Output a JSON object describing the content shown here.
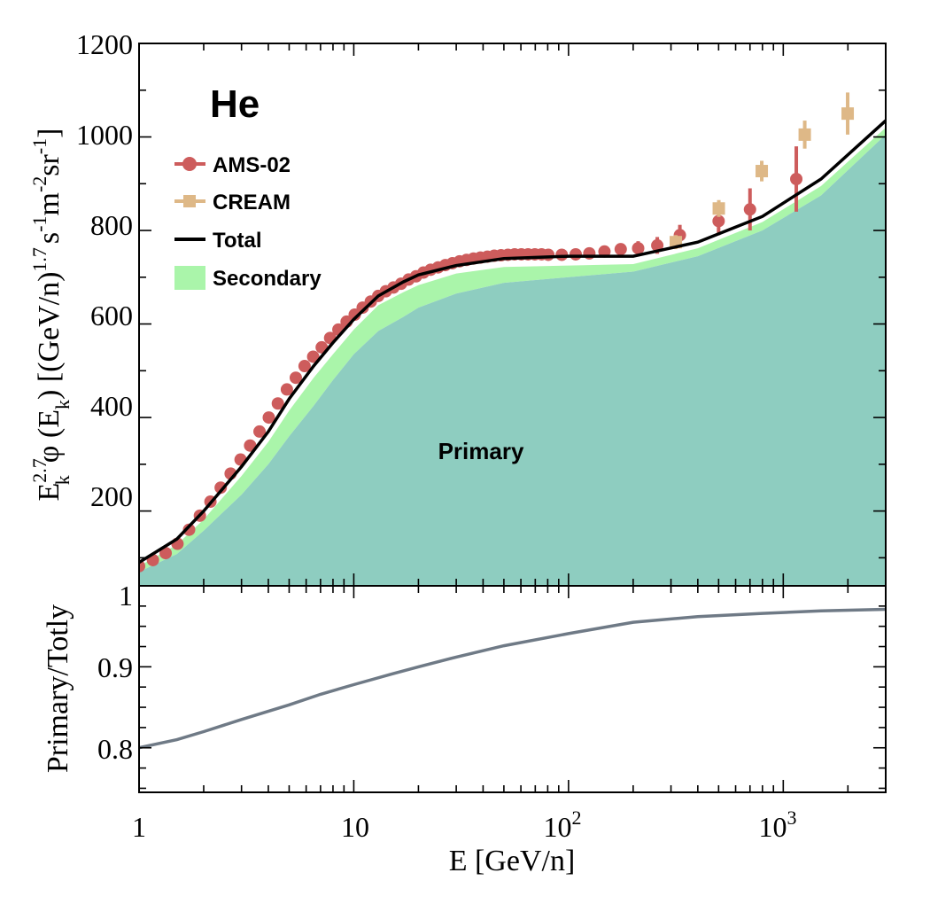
{
  "chart_data": [
    {
      "type": "line",
      "panel": "upper",
      "title": "He",
      "xlabel": "E [GeV/n]",
      "ylabel": "E_k^2.7 φ (E_k) [(GeV/n)^1.7 s^-1 m^-2 sr^-1]",
      "ylabel_parts": {
        "a": "E",
        "a_sup": "2.7",
        "a_sub": "k",
        "b": "φ (E",
        "b_sub": "k",
        "c": ") [(GeV/n)",
        "c_sup": "1.7",
        "d": "s",
        "d_sup": "-1",
        "e": "m",
        "e_sup": "-2",
        "f": "sr",
        "f_sup": "-1",
        "g": "]"
      },
      "xscale": "log",
      "xlim": [
        1,
        3000
      ],
      "ylim": [
        40,
        1200
      ],
      "yticks": [
        200,
        400,
        600,
        800,
        1000,
        1200
      ],
      "ytick_labels": [
        "200",
        "400",
        "600",
        "800",
        "1000",
        "1200"
      ],
      "legend_placement": "upper-left",
      "area_label": "Primary",
      "series": [
        {
          "name": "Total",
          "kind": "line",
          "color": "#000000",
          "x": [
            1,
            1.5,
            2,
            3,
            4,
            5,
            6.5,
            8,
            10,
            13,
            17,
            20,
            30,
            50,
            100,
            200,
            400,
            800,
            1500,
            3000
          ],
          "y": [
            90,
            140,
            200,
            295,
            370,
            440,
            510,
            560,
            610,
            660,
            690,
            705,
            725,
            740,
            745,
            745,
            775,
            830,
            910,
            1035
          ]
        },
        {
          "name": "Primary",
          "kind": "area",
          "color": "#8ecdc0",
          "x": [
            1,
            1.5,
            2,
            3,
            4,
            5,
            6.5,
            8,
            10,
            13,
            17,
            20,
            30,
            50,
            100,
            200,
            400,
            800,
            1500,
            3000
          ],
          "y": [
            70,
            108,
            158,
            235,
            300,
            360,
            425,
            480,
            535,
            585,
            615,
            635,
            665,
            688,
            700,
            712,
            745,
            800,
            875,
            1005
          ]
        },
        {
          "name": "Secondary",
          "kind": "band",
          "color": "#aaf5aa",
          "x": [
            1,
            1.5,
            2,
            3,
            4,
            5,
            6.5,
            8,
            10,
            13,
            17,
            20,
            30,
            50,
            100,
            200,
            400,
            800,
            1500,
            3000
          ],
          "y": [
            82,
            128,
            182,
            275,
            348,
            415,
            485,
            535,
            588,
            640,
            668,
            683,
            708,
            722,
            725,
            728,
            762,
            818,
            895,
            1020
          ]
        },
        {
          "name": "AMS-02",
          "kind": "points",
          "color": "#cd5c5c",
          "x": [
            1,
            1.16,
            1.33,
            1.51,
            1.71,
            1.92,
            2.15,
            2.4,
            2.67,
            2.97,
            3.29,
            3.64,
            4.02,
            4.43,
            4.88,
            5.37,
            5.9,
            6.47,
            7.09,
            7.76,
            8.48,
            9.26,
            10.1,
            11.0,
            12.0,
            13.0,
            14.1,
            15.3,
            16.6,
            18.0,
            19.5,
            21.1,
            22.8,
            24.7,
            26.7,
            28.8,
            31.1,
            33.5,
            36.1,
            38.9,
            41.9,
            45.1,
            48.5,
            52.2,
            56.1,
            60.3,
            64.8,
            69.7,
            74.9,
            80.5,
            93.0,
            108,
            125,
            147,
            175,
            211,
            259,
            330,
            500,
            700,
            1150
          ],
          "y": [
            82,
            95,
            110,
            130,
            160,
            190,
            220,
            250,
            280,
            310,
            340,
            370,
            400,
            430,
            460,
            485,
            510,
            530,
            550,
            570,
            588,
            605,
            620,
            635,
            648,
            660,
            670,
            678,
            686,
            695,
            702,
            710,
            716,
            721,
            726,
            730,
            734,
            737,
            740,
            742,
            744,
            746,
            747,
            748,
            749,
            749,
            749,
            749,
            749,
            748,
            748,
            749,
            751,
            755,
            760,
            762,
            768,
            790,
            820,
            845,
            910
          ],
          "err": [
            0,
            0,
            0,
            0,
            0,
            0,
            0,
            0,
            0,
            0,
            0,
            0,
            0,
            0,
            0,
            0,
            0,
            0,
            0,
            0,
            0,
            0,
            0,
            0,
            0,
            0,
            0,
            0,
            0,
            0,
            0,
            0,
            0,
            0,
            0,
            0,
            0,
            0,
            0,
            0,
            0,
            0,
            0,
            0,
            0,
            0,
            0,
            0,
            0,
            0,
            6,
            7,
            8,
            10,
            12,
            15,
            18,
            22,
            30,
            45,
            70
          ]
        },
        {
          "name": "CREAM",
          "kind": "points",
          "color": "#deb887",
          "x": [
            316,
            501,
            794,
            1259,
            1995
          ],
          "y": [
            775,
            847,
            927,
            1005,
            1050
          ],
          "err": [
            15,
            18,
            22,
            30,
            45
          ]
        }
      ]
    },
    {
      "type": "line",
      "panel": "lower",
      "xlabel": "E [GeV/n]",
      "ylabel": "Primary/Totly",
      "xscale": "log",
      "xlim": [
        1,
        3000
      ],
      "ylim": [
        0.745,
        1.0
      ],
      "xticks": [
        1,
        10,
        100,
        1000
      ],
      "yticks": [
        0.8,
        0.9,
        1
      ],
      "ytick_labels": [
        "0.8",
        "0.9",
        "1"
      ],
      "series": [
        {
          "name": "Primary/Totly",
          "color": "#6f7a86",
          "x": [
            1,
            1.5,
            2,
            3,
            5,
            7,
            10,
            15,
            20,
            30,
            50,
            100,
            200,
            400,
            800,
            1500,
            3000
          ],
          "y": [
            0.8,
            0.81,
            0.82,
            0.835,
            0.853,
            0.866,
            0.878,
            0.891,
            0.9,
            0.912,
            0.926,
            0.941,
            0.955,
            0.962,
            0.966,
            0.969,
            0.971
          ]
        }
      ]
    }
  ],
  "x_tick_labels": {
    "t1": "1",
    "t10": "10",
    "t100_base": "10",
    "t100_exp": "2",
    "t1000_base": "10",
    "t1000_exp": "3"
  }
}
